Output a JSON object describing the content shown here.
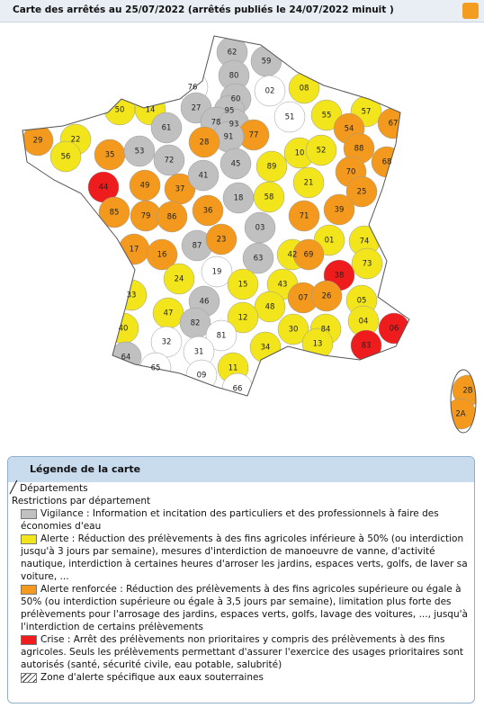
{
  "header": {
    "title": "Carte des arrêtés au 25/07/2022 (arrêtés publiés le 24/07/2022 minuit )"
  },
  "map": {
    "departments": [
      "62",
      "59",
      "76",
      "80",
      "02",
      "08",
      "14",
      "50",
      "27",
      "60",
      "95",
      "51",
      "55",
      "57",
      "67",
      "29",
      "22",
      "61",
      "78",
      "93",
      "77",
      "91",
      "54",
      "88",
      "56",
      "35",
      "53",
      "72",
      "28",
      "10",
      "52",
      "68",
      "70",
      "44",
      "49",
      "37",
      "41",
      "45",
      "89",
      "21",
      "25",
      "85",
      "79",
      "86",
      "36",
      "18",
      "58",
      "71",
      "39",
      "17",
      "16",
      "87",
      "23",
      "03",
      "01",
      "74",
      "73",
      "24",
      "19",
      "63",
      "42",
      "69",
      "33",
      "15",
      "43",
      "38",
      "05",
      "47",
      "46",
      "48",
      "07",
      "26",
      "04",
      "40",
      "82",
      "12",
      "30",
      "84",
      "06",
      "32",
      "81",
      "34",
      "13",
      "83",
      "64",
      "65",
      "31",
      "11",
      "09",
      "66",
      "2B",
      "2A"
    ]
  },
  "legend": {
    "title": "Légende de la carte",
    "departments": "Départements",
    "restrictions": "Restrictions par département",
    "items": [
      "Vigilance : Information et incitation des particuliers et des professionnels à faire des économies d'eau",
      "Alerte : Réduction des prélèvements à des fins agricoles inférieure à 50% (ou interdiction jusqu'à 3 jours par semaine), mesures d'interdiction de manoeuvre de vanne, d'activité nautique, interdiction à certaines heures d'arroser les jardins, espaces verts, golfs, de laver sa voiture, ...",
      "Alerte renforcée : Réduction des prélèvements à des fins agricoles supérieure ou égale à 50% (ou interdiction supérieure ou égale à 3,5 jours par semaine), limitation plus forte des prélèvements pour l'arrosage des jardins, espaces verts, golfs, lavage des voitures, ..., jusqu'à l'interdiction de certains prélèvements",
      "Crise : Arrêt des prélèvements non prioritaires y compris des prélèvements à des fins agricoles. Seuls les prélèvements permettant d'assurer l'exercice des usages prioritaires sont autorisés (santé, sécurité civile, eau potable, salubrité)"
    ],
    "groundwater": "Zone d'alerte spécifique aux eaux souterraines"
  }
}
